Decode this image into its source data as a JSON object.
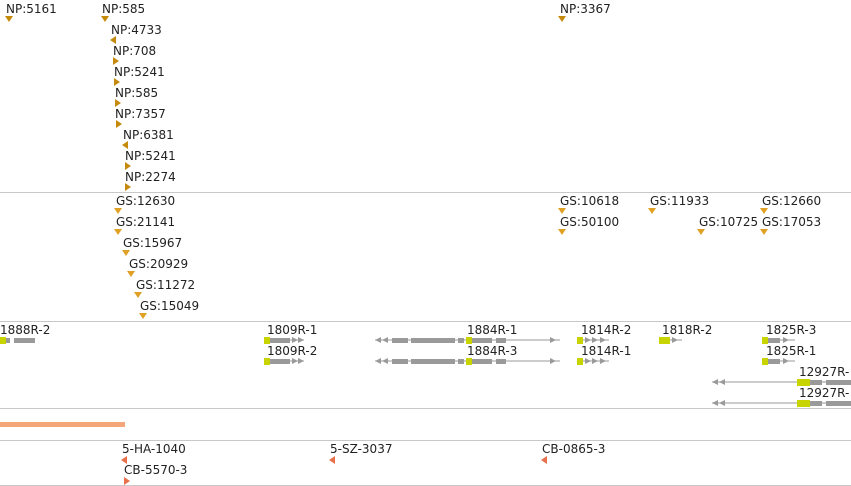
{
  "colors": {
    "np": "#c58a0c",
    "gs": "#e0a024",
    "gene_body": "#9a9a9a",
    "gene_start": "#c8d400",
    "coverage": "#f4a67a",
    "sample": "#e8704a",
    "divider": "#c8c8c8"
  },
  "np_track": {
    "items": [
      {
        "label": "NP:5161",
        "orient": "down"
      },
      {
        "label": "NP:585",
        "orient": "down"
      },
      {
        "label": "NP:4733",
        "orient": "left"
      },
      {
        "label": "NP:708",
        "orient": "right"
      },
      {
        "label": "NP:5241",
        "orient": "right"
      },
      {
        "label": "NP:585",
        "orient": "right"
      },
      {
        "label": "NP:7357",
        "orient": "right"
      },
      {
        "label": "NP:6381",
        "orient": "left"
      },
      {
        "label": "NP:5241",
        "orient": "right"
      },
      {
        "label": "NP:2274",
        "orient": "right"
      },
      {
        "label": "NP:3367",
        "orient": "down"
      }
    ]
  },
  "gs_track": {
    "items": [
      {
        "label": "GS:12630"
      },
      {
        "label": "GS:21141"
      },
      {
        "label": "GS:15967"
      },
      {
        "label": "GS:20929"
      },
      {
        "label": "GS:11272"
      },
      {
        "label": "GS:15049"
      },
      {
        "label": "GS:10618"
      },
      {
        "label": "GS:50100"
      },
      {
        "label": "GS:11933"
      },
      {
        "label": "GS:10725"
      },
      {
        "label": "GS:12660"
      },
      {
        "label": "GS:17053"
      }
    ]
  },
  "gene_track": {
    "items": [
      {
        "label": "1888R-2"
      },
      {
        "label": "1809R-1"
      },
      {
        "label": "1809R-2"
      },
      {
        "label": "1884R-1"
      },
      {
        "label": "1884R-3"
      },
      {
        "label": "1814R-2"
      },
      {
        "label": "1814R-1"
      },
      {
        "label": "1818R-2"
      },
      {
        "label": "1825R-3"
      },
      {
        "label": "1825R-1"
      },
      {
        "label": "12927R-"
      },
      {
        "label": "12927R-"
      }
    ]
  },
  "sample_track": {
    "items": [
      {
        "label": "5-HA-1040"
      },
      {
        "label": "CB-5570-3"
      },
      {
        "label": "5-SZ-3037"
      },
      {
        "label": "CB-0865-3"
      }
    ]
  }
}
